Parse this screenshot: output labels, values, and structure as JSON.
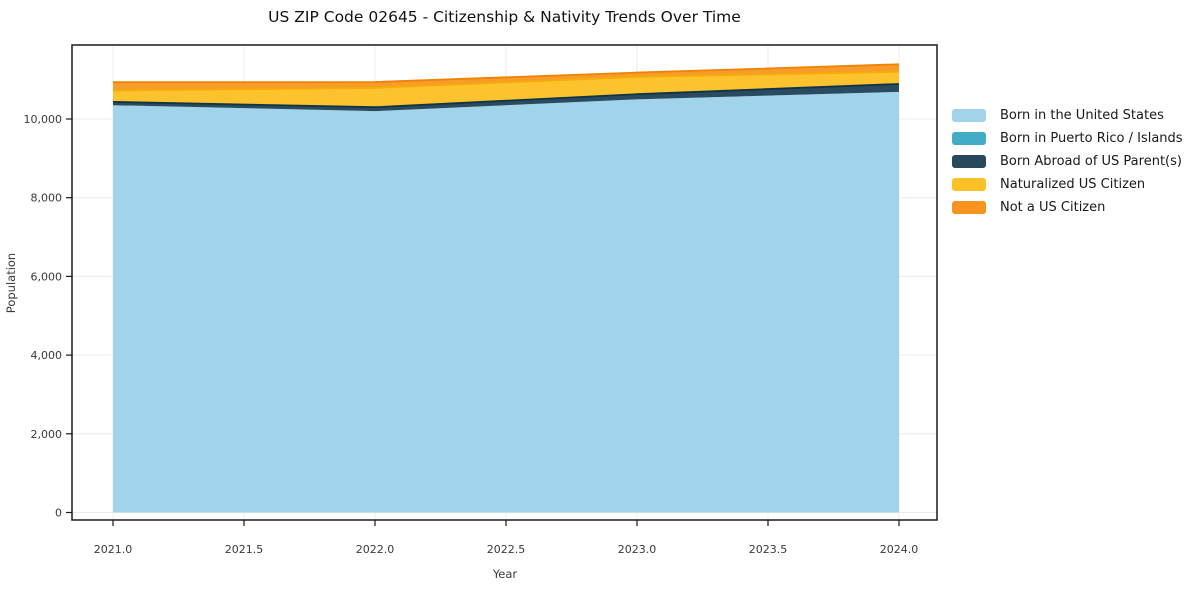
{
  "title": "US ZIP Code 02645 - Citizenship & Nativity Trends Over Time",
  "chart_data": {
    "type": "area",
    "stacked": true,
    "title": "US ZIP Code 02645 - Citizenship & Nativity Trends Over Time",
    "xlabel": "Year",
    "ylabel": "Population",
    "x": [
      2021,
      2022,
      2023,
      2024
    ],
    "x_tick_values": [
      2021.0,
      2021.5,
      2022.0,
      2022.5,
      2023.0,
      2023.5,
      2024.0
    ],
    "x_tick_labels": [
      "2021.0",
      "2021.5",
      "2022.0",
      "2022.5",
      "2023.0",
      "2023.5",
      "2024.0"
    ],
    "y_tick_values": [
      0,
      2000,
      4000,
      6000,
      8000,
      10000
    ],
    "y_tick_labels": [
      "0",
      "2,000",
      "4,000",
      "6,000",
      "8,000",
      "10,000"
    ],
    "xlim": [
      2020.84,
      2024.15
    ],
    "ylim": [
      -190,
      11880
    ],
    "grid": true,
    "legend_position": "right-outside",
    "series": [
      {
        "name": "Born in the United States",
        "values": [
          10350,
          10200,
          10500,
          10690
        ],
        "legend_color": "#a3d3e8",
        "fill": "#a1d3ea",
        "edge": "#8ecae6"
      },
      {
        "name": "Born in Puerto Rico / Islands",
        "values": [
          0,
          0,
          0,
          0
        ],
        "legend_color": "#42acc6",
        "fill": "#42acc6",
        "edge": "#219ebc"
      },
      {
        "name": "Born Abroad of US Parent(s)",
        "values": [
          85,
          100,
          130,
          200
        ],
        "legend_color": "#28495c",
        "fill": "#2a4b5f",
        "edge": "#0f3347"
      },
      {
        "name": "Naturalized US Citizen",
        "values": [
          290,
          490,
          440,
          310
        ],
        "legend_color": "#fcc127",
        "fill": "#fdc32e",
        "edge": "#f5ad05"
      },
      {
        "name": "Not a US Citizen",
        "values": [
          210,
          150,
          110,
          190
        ],
        "legend_color": "#f6941e",
        "fill": "#f89b2b",
        "edge": "#ef8303"
      }
    ]
  }
}
